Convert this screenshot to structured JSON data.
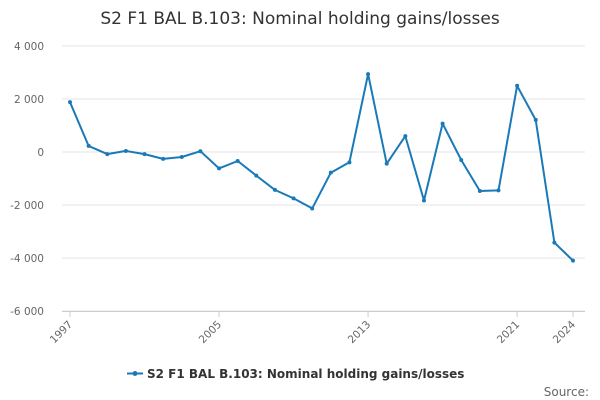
{
  "chart_data": {
    "type": "line",
    "title": "S2 F1 BAL B.103: Nominal holding gains/losses",
    "xlabel": "",
    "ylabel": "",
    "x": [
      1997,
      1998,
      1999,
      2000,
      2001,
      2002,
      2003,
      2004,
      2005,
      2006,
      2007,
      2008,
      2009,
      2010,
      2011,
      2012,
      2013,
      2014,
      2015,
      2016,
      2017,
      2018,
      2019,
      2020,
      2021,
      2022,
      2023,
      2024
    ],
    "x_ticks": [
      "1997",
      "2005",
      "2013",
      "2021",
      "2024"
    ],
    "ylim": [
      -6000,
      4000
    ],
    "y_ticks": [
      {
        "value": 4000,
        "label": "4 000"
      },
      {
        "value": 2000,
        "label": "2 000"
      },
      {
        "value": 0,
        "label": "0"
      },
      {
        "value": -2000,
        "label": "-2 000"
      },
      {
        "value": -4000,
        "label": "-4 000"
      },
      {
        "value": -6000,
        "label": "-6 000"
      }
    ],
    "series": [
      {
        "name": "S2 F1 BAL B.103: Nominal holding gains/losses",
        "color": "#1a7ab8",
        "values": [
          1880,
          230,
          -80,
          40,
          -80,
          -260,
          -190,
          30,
          -620,
          -340,
          -890,
          -1430,
          -1750,
          -2130,
          -780,
          -390,
          2940,
          -440,
          600,
          -1830,
          1070,
          -300,
          -1470,
          -1450,
          2500,
          1210,
          -3420,
          -4100
        ]
      }
    ],
    "legend_position": "bottom",
    "source_label": "Source:",
    "grid": true
  }
}
